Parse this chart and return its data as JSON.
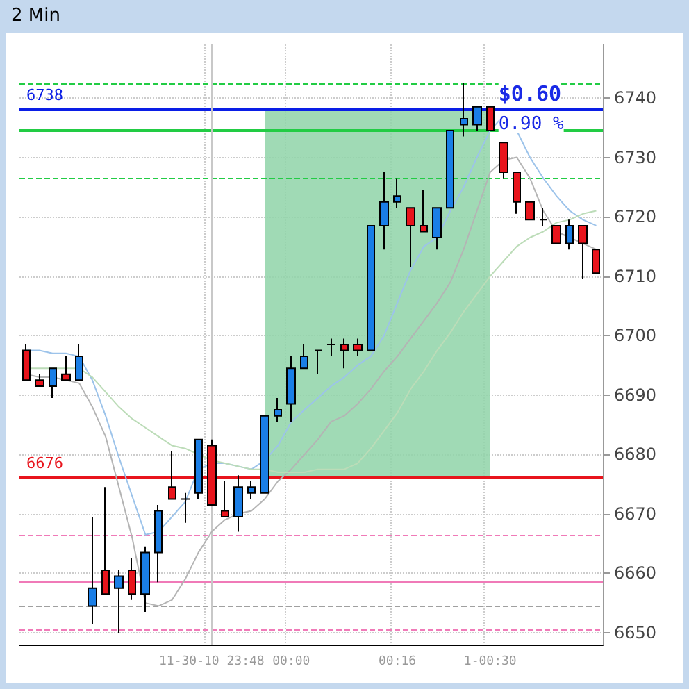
{
  "chart_data": {
    "type": "candlestick",
    "title": "2 Min",
    "categories": [
      null,
      null,
      null,
      null,
      null,
      null,
      null,
      null,
      null,
      null,
      null,
      null,
      null,
      null,
      "11-30-10 23:48",
      null,
      null,
      null,
      null,
      null,
      "00:00",
      null,
      null,
      null,
      null,
      null,
      null,
      null,
      "00:16",
      null,
      null,
      null,
      null,
      null,
      null,
      "1-00:30",
      null,
      null,
      null,
      null,
      null,
      null,
      null,
      null
    ],
    "ohlc": [
      [
        6697.5,
        6698.5,
        6692.5,
        6692.5
      ],
      [
        6692.5,
        6693.5,
        6691.5,
        6691.5
      ],
      [
        6691.5,
        6694.5,
        6689.5,
        6694.5
      ],
      [
        6693.5,
        6696.5,
        6692.5,
        6692.5
      ],
      [
        6692.5,
        6698.5,
        6692.5,
        6696.5
      ],
      [
        6654.5,
        6669.5,
        6651.5,
        6657.5
      ],
      [
        6660.5,
        6674.5,
        6656.5,
        6656.5
      ],
      [
        6657.5,
        6660.5,
        6650,
        6659.5
      ],
      [
        6660.5,
        6662.5,
        6655.5,
        6656.5
      ],
      [
        6656.5,
        6664.5,
        6653.5,
        6663.5
      ],
      [
        6663.5,
        6671.5,
        6658.5,
        6670.5
      ],
      [
        6674.5,
        6680.5,
        6672.5,
        6672.5
      ],
      [
        6672.5,
        6673.5,
        6668.5,
        6672.5
      ],
      [
        6673.5,
        6682.5,
        6672.5,
        6682.5
      ],
      [
        6681.5,
        6682.5,
        6671.5,
        6671.5
      ],
      [
        6670.5,
        6675.5,
        6669.5,
        6669.5
      ],
      [
        6669.5,
        6676.5,
        6667,
        6674.5
      ],
      [
        6673.5,
        6675.5,
        6672.5,
        6674.5
      ],
      [
        6673.5,
        6686.5,
        6673.5,
        6686.5
      ],
      [
        6686.5,
        6689.5,
        6685.5,
        6687.5
      ],
      [
        6688.5,
        6696.5,
        6685.5,
        6694.5
      ],
      [
        6694.5,
        6698.5,
        6694.5,
        6696.5
      ],
      [
        6697.5,
        6697.5,
        6693.5,
        6697.5
      ],
      [
        6698.5,
        6699.5,
        6696.5,
        6698.5
      ],
      [
        6698.5,
        6699.5,
        6694.5,
        6697.5
      ],
      [
        6698.5,
        6699.5,
        6696.5,
        6697.5
      ],
      [
        6697.5,
        6718.5,
        6697.5,
        6718.5
      ],
      [
        6718.5,
        6727.5,
        6714.5,
        6722.5
      ],
      [
        6722.5,
        6726.5,
        6721.5,
        6723.5
      ],
      [
        6721.5,
        6721.5,
        6711.5,
        6718.5
      ],
      [
        6718.5,
        6724.5,
        6717.5,
        6717.5
      ],
      [
        6716.5,
        6721.5,
        6714.5,
        6721.5
      ],
      [
        6721.5,
        6734.5,
        6721.5,
        6734.5
      ],
      [
        6735.5,
        6742.5,
        6733.5,
        6736.5
      ],
      [
        6735.5,
        6738.5,
        6734.5,
        6738.5
      ],
      [
        6738.5,
        6738.5,
        6734.5,
        6734.5
      ],
      [
        6732.5,
        6732.5,
        6726.5,
        6727.5
      ],
      [
        6727.5,
        6727.5,
        6720.5,
        6722.5
      ],
      [
        6722.5,
        6722.5,
        6719.5,
        6719.5
      ],
      [
        6719.5,
        6721.5,
        6718.5,
        6719.5
      ],
      [
        6718.5,
        6718.5,
        6715.5,
        6715.5
      ],
      [
        6715.5,
        6719.5,
        6714.5,
        6718.5
      ],
      [
        6718.5,
        6718.5,
        6709.5,
        6715.5
      ],
      [
        6714.5,
        6714.5,
        6710.5,
        6710.5
      ]
    ],
    "series": [
      {
        "type": "line",
        "color": "#9cc3ea",
        "values": [
          6697.5,
          6697.5,
          6697,
          6697,
          6696.5,
          6692.5,
          6686.5,
          6679.5,
          6673,
          6666.5,
          6667,
          6669.5,
          6672,
          6677.5,
          6678.5,
          6678.5,
          6678,
          6677.5,
          6679,
          6681.5,
          6685.5,
          6687.5,
          6689.5,
          6691.5,
          6693,
          6695,
          6696.5,
          6700,
          6705.5,
          6711,
          6715,
          6716.5,
          6721,
          6725,
          6730,
          6734.5,
          6737,
          6734.5,
          6730,
          6726.5,
          6723.5,
          6721,
          6719.5,
          6718.5
        ]
      },
      {
        "type": "line",
        "color": "#b4b4b4",
        "values": [
          6693.5,
          6693,
          6693,
          6692.5,
          6692,
          6688,
          6683,
          6674.5,
          6666,
          6655,
          6654.5,
          6655.5,
          6659,
          6663.5,
          6667,
          6669,
          6670,
          6670.5,
          6672.5,
          6675.5,
          6677.5,
          6680,
          6682.5,
          6685.5,
          6686.5,
          6688.5,
          6691,
          6694,
          6696.5,
          6699.5,
          6702.5,
          6705.5,
          6709,
          6714.5,
          6721,
          6727.5,
          6729.5,
          6730,
          6726.5,
          6721,
          6717.5,
          6716.5,
          6715.5,
          6714.5
        ]
      },
      {
        "type": "line",
        "color": "#bcdcb8",
        "values": [
          6694.5,
          6694.5,
          6694.5,
          6694.5,
          6694.5,
          6693,
          6690.5,
          6688,
          6686,
          6684.5,
          6683,
          6681.5,
          6681,
          6680,
          6679,
          6678.5,
          6678,
          6677.5,
          6677.5,
          6677,
          6677,
          6677,
          6677.5,
          6677.5,
          6677.5,
          6678.5,
          6681,
          6684,
          6687,
          6691,
          6694,
          6697.5,
          6700.5,
          6704,
          6707,
          6710,
          6712.5,
          6715,
          6716.5,
          6717.5,
          6719,
          6719.5,
          6720.5,
          6721
        ]
      }
    ],
    "ylim": [
      6648,
      6749
    ],
    "yticks": [
      6650,
      6660,
      6670,
      6680,
      6690,
      6700,
      6710,
      6720,
      6730,
      6740
    ],
    "grid": true,
    "ref_lines": [
      {
        "axis": "y",
        "value": 6742.5,
        "color": "#22cc44",
        "line_style": "dashed"
      },
      {
        "axis": "y",
        "value": 6734.5,
        "color": "#22cc44",
        "line_style": "solid"
      },
      {
        "axis": "y",
        "value": 6726.5,
        "color": "#22cc44",
        "line_style": "dashed"
      },
      {
        "axis": "y",
        "value": 6738,
        "label": "6738",
        "color": "#0a1ee6",
        "line_style": "solid"
      },
      {
        "axis": "y",
        "value": 6676,
        "label": "6676",
        "color": "#e8141c",
        "line_style": "solid"
      },
      {
        "axis": "y",
        "value": 6666.5,
        "color": "#f07ab8",
        "line_style": "dashed"
      },
      {
        "axis": "y",
        "value": 6658.5,
        "color": "#f07ab8",
        "line_style": "solid"
      },
      {
        "axis": "y",
        "value": 6654.5,
        "color": "#a0a0a0",
        "line_style": "dashed"
      },
      {
        "axis": "y",
        "value": 6650.5,
        "color": "#f07ab8",
        "line_style": "dashed"
      },
      {
        "axis": "x",
        "value": "11-30-10 23:48",
        "color": "#c8c8c8",
        "line_style": "solid"
      }
    ],
    "bands": [
      {
        "axis": "y",
        "from": 6676,
        "to": 6738,
        "color": "#8fd4a8"
      }
    ],
    "annotations": [
      "$0.60",
      "0.90 %"
    ]
  }
}
